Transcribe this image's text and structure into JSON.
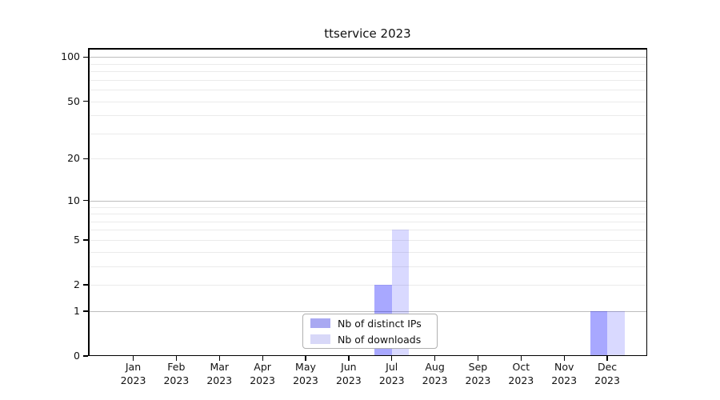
{
  "title": "ttservice 2023",
  "chart_data": {
    "type": "bar",
    "title": "ttservice 2023",
    "x": {
      "categories": [
        "Jan",
        "Feb",
        "Mar",
        "Apr",
        "May",
        "Jun",
        "Jul",
        "Aug",
        "Sep",
        "Oct",
        "Nov",
        "Dec"
      ],
      "year": "2023"
    },
    "series": [
      {
        "name": "Nb of distinct IPs",
        "color": "rgba(0,0,255,0.34)",
        "legend_color": "#a9a9f2",
        "values": [
          0,
          0,
          0,
          0,
          0,
          0,
          2,
          0,
          0,
          0,
          0,
          1
        ]
      },
      {
        "name": "Nb of downloads",
        "color": "rgba(0,0,255,0.15)",
        "legend_color": "#d8d8f8",
        "values": [
          0,
          0,
          0,
          0,
          0,
          0,
          6,
          0,
          0,
          0,
          0,
          1
        ]
      }
    ],
    "y_axis": {
      "scale": "log1p",
      "ticks": [
        0,
        1,
        2,
        5,
        10,
        20,
        50,
        100
      ],
      "min": 0,
      "max": 115
    },
    "grid": {
      "major": [
        1,
        10,
        100
      ],
      "minor": [
        2,
        3,
        4,
        5,
        6,
        7,
        8,
        9,
        20,
        30,
        40,
        50,
        60,
        70,
        80,
        90
      ],
      "major_color": "#bdbdbd",
      "minor_color": "#ebebeb"
    },
    "legend_position": "lower center"
  }
}
